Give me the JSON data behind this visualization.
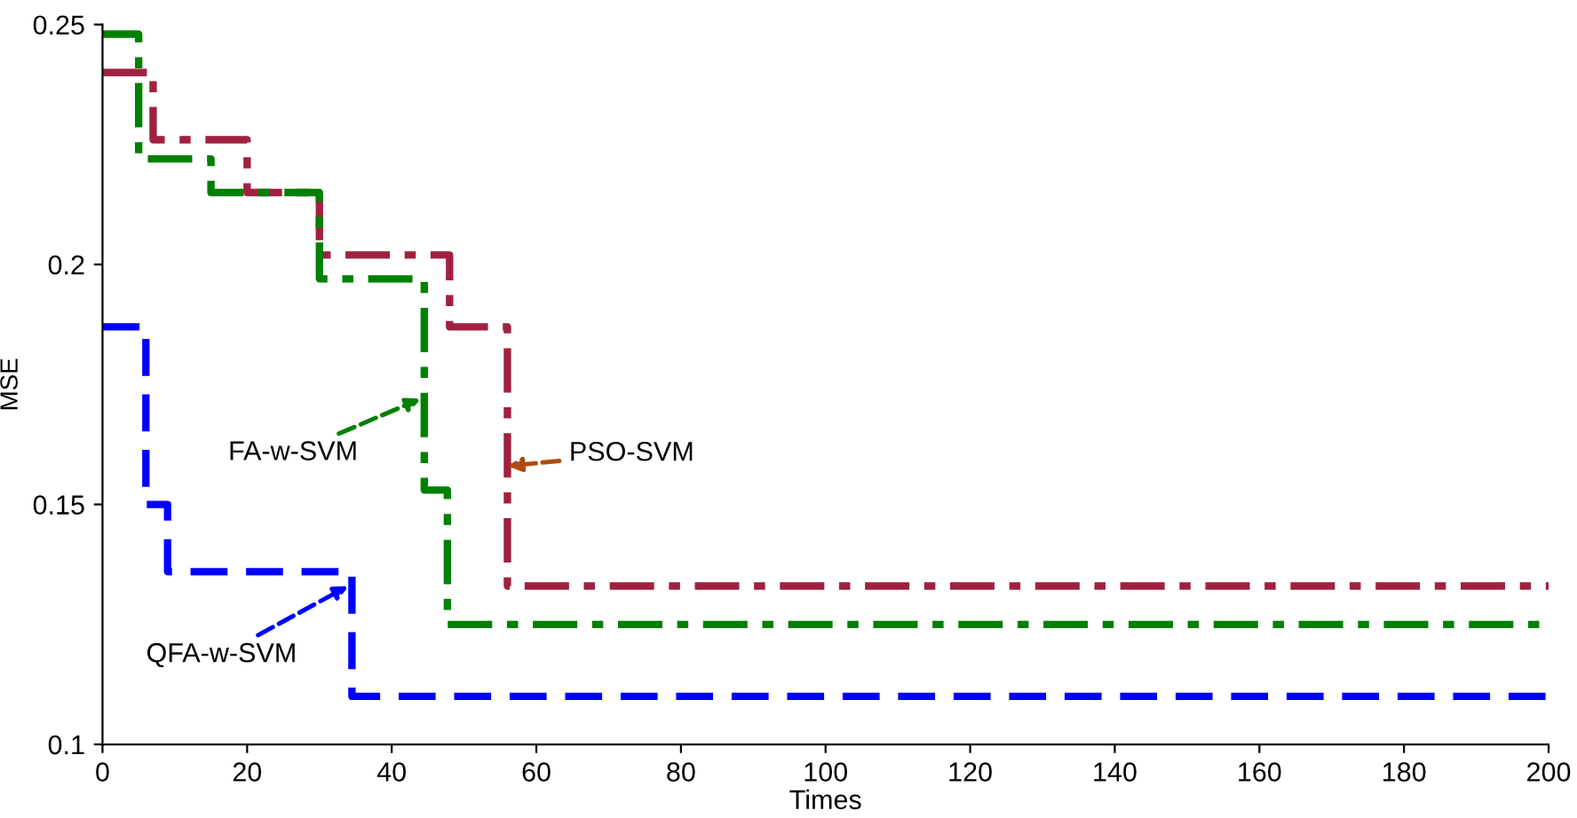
{
  "chart_data": {
    "type": "step",
    "xlabel": "Times",
    "ylabel": "MSE",
    "xlim": [
      0,
      200
    ],
    "ylim": [
      0.1,
      0.25
    ],
    "xticks": [
      0,
      20,
      40,
      60,
      80,
      100,
      120,
      140,
      160,
      180,
      200
    ],
    "yticks": [
      0.1,
      0.15,
      0.2,
      0.25
    ],
    "grid": false,
    "legend": false,
    "series": [
      {
        "color": "#a0213f",
        "line_style": "dashdot",
        "x": [
          0,
          7,
          20,
          30,
          48,
          56,
          200
        ],
        "values": [
          0.24,
          0.226,
          0.215,
          0.202,
          0.187,
          0.133,
          0.133
        ]
      },
      {
        "color": "#008000",
        "line_style": "dashdot",
        "x": [
          0,
          5,
          15,
          30,
          44.5,
          47.7,
          200
        ],
        "values": [
          0.248,
          0.222,
          0.215,
          0.197,
          0.153,
          0.125,
          0.125
        ]
      },
      {
        "color": "#0000ff",
        "line_style": "dashed",
        "x": [
          0,
          6,
          9,
          34.5,
          200
        ],
        "values": [
          0.187,
          0.15,
          0.136,
          0.11,
          0.11
        ]
      }
    ],
    "annotations": [
      {
        "text": "FA-w-SVM",
        "x": 44,
        "y": 0.172
      },
      {
        "text": "PSO-SVM",
        "x": 56,
        "y": 0.158
      },
      {
        "text": "QFA-w-SVM",
        "x": 34,
        "y": 0.133
      }
    ]
  }
}
